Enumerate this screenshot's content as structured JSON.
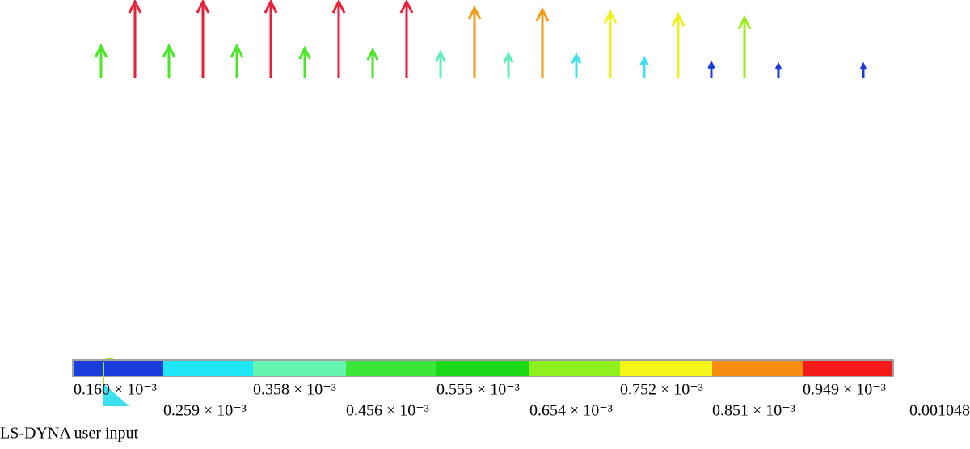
{
  "legend": {
    "colors": [
      "#1a3ddb",
      "#1ee6f5",
      "#66f5b0",
      "#3ae63a",
      "#19d919",
      "#8ef01c",
      "#f5f51a",
      "#f58c10",
      "#f51a1a"
    ],
    "labels": [
      "0.160 × 10⁻³",
      "0.259 × 10⁻³",
      "0.358 × 10⁻³",
      "0.456 × 10⁻³",
      "0.555 × 10⁻³",
      "0.654 × 10⁻³",
      "0.752 × 10⁻³",
      "0.851 × 10⁻³",
      "0.949 × 10⁻³",
      "0.001048"
    ]
  },
  "footer": {
    "text": "LS-DYNA user input"
  }
}
